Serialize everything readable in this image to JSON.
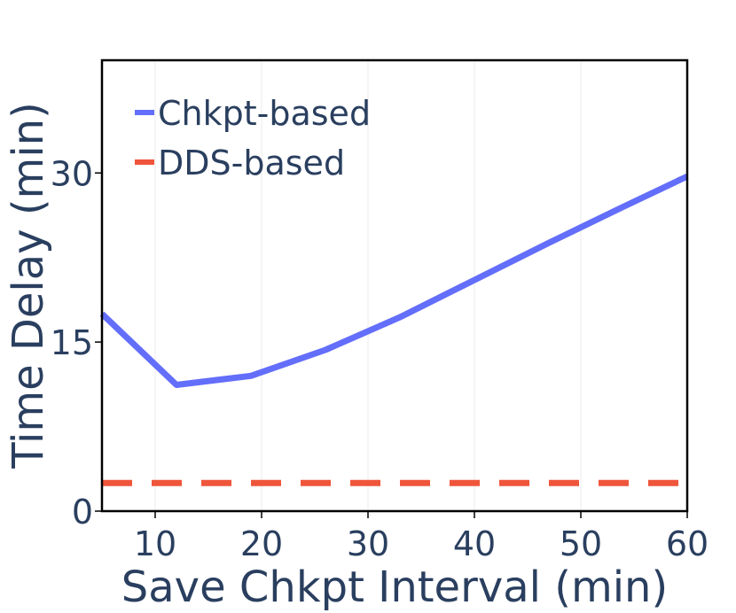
{
  "chart_data": {
    "type": "line",
    "title": "",
    "xlabel": "Save Chkpt Interval (min)",
    "ylabel": "Time Delay (min)",
    "xlim": [
      5,
      60
    ],
    "ylim": [
      0,
      40
    ],
    "xticks": [
      10,
      20,
      30,
      40,
      50,
      60
    ],
    "yticks": [
      0,
      15,
      30
    ],
    "grid": "vertical",
    "legend_position": "top-left",
    "series": [
      {
        "name": "Chkpt-based",
        "color": "#636efa",
        "style": "solid",
        "x": [
          5,
          12,
          19,
          26,
          33,
          40,
          47,
          54,
          60
        ],
        "y": [
          17.5,
          11.2,
          12.0,
          14.3,
          17.2,
          20.5,
          23.8,
          27.0,
          29.7
        ]
      },
      {
        "name": "DDS-based",
        "color": "#ef553b",
        "style": "dashed",
        "x": [
          5,
          60
        ],
        "y": [
          2.5,
          2.5
        ]
      }
    ]
  }
}
